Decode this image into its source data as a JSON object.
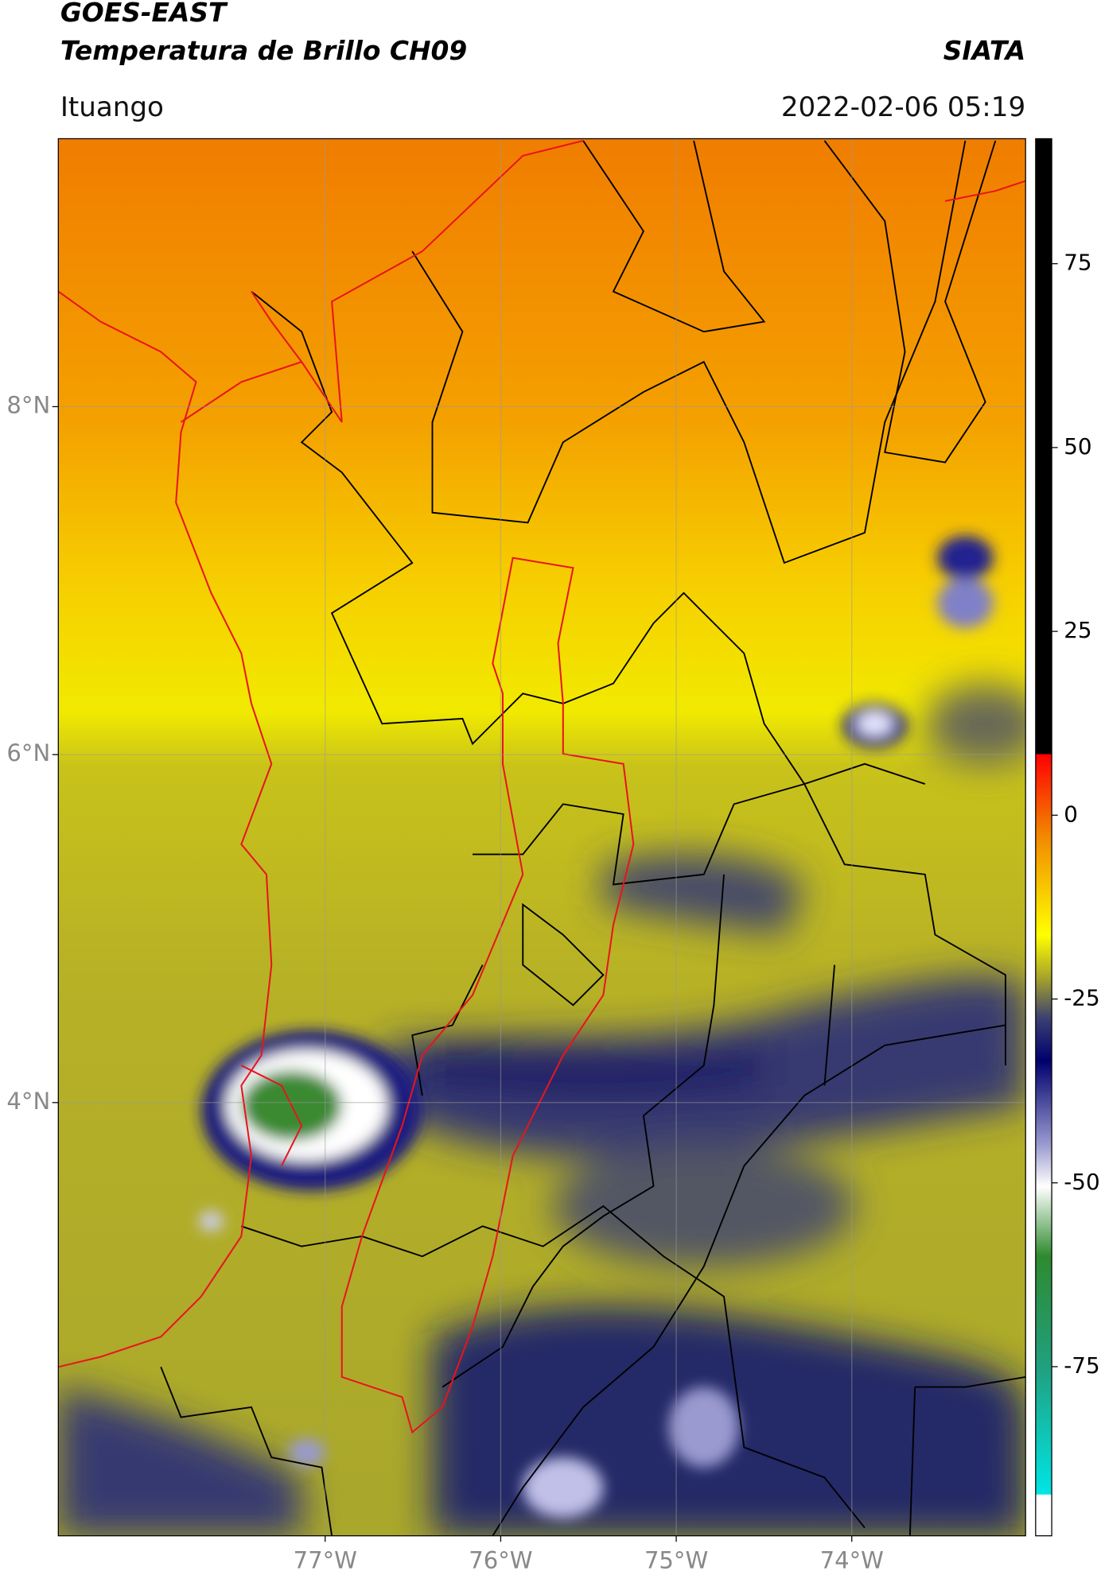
{
  "header": {
    "title": "GOES-EAST",
    "subtitle": "Temperatura de Brillo CH09",
    "source": "SIATA",
    "location": "Ituango",
    "timestamp": "2022-02-06 05:19"
  },
  "map": {
    "xlim": [
      -78.52,
      -73.01
    ],
    "ylim": [
      1.51,
      9.54
    ],
    "xticks": [
      {
        "value": -77,
        "label": "77°W"
      },
      {
        "value": -76,
        "label": "76°W"
      },
      {
        "value": -75,
        "label": "75°W"
      },
      {
        "value": -74,
        "label": "74°W"
      }
    ],
    "yticks": [
      {
        "value": 8,
        "label": "8°N"
      },
      {
        "value": 6,
        "label": "6°N"
      },
      {
        "value": 4,
        "label": "4°N"
      }
    ]
  },
  "colorbar": {
    "lim": [
      -98,
      92
    ],
    "ticks": [
      75,
      50,
      25,
      0,
      -25,
      -50,
      -75
    ]
  }
}
